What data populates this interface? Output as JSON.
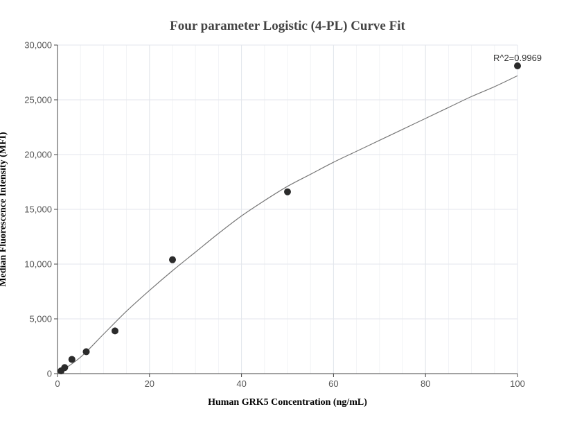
{
  "chart_data": {
    "type": "scatter",
    "title": "Four parameter Logistic (4-PL) Curve Fit",
    "xlabel": "Human GRK5 Concentration (ng/mL)",
    "ylabel": "Median Fluorescence Intensity (MFI)",
    "xlim": [
      0,
      100
    ],
    "ylim": [
      0,
      30000
    ],
    "x_ticks": [
      0,
      20,
      40,
      60,
      80,
      100
    ],
    "x_tick_labels": [
      "0",
      "20",
      "40",
      "60",
      "80",
      "100"
    ],
    "y_ticks": [
      0,
      5000,
      10000,
      15000,
      20000,
      25000,
      30000
    ],
    "y_tick_labels": [
      "0",
      "5,000",
      "10,000",
      "15,000",
      "20,000",
      "25,000",
      "30,000"
    ],
    "grid": true,
    "series": [
      {
        "kind": "points",
        "color": "#2b2b2b",
        "x": [
          0.78,
          1.56,
          3.13,
          6.25,
          12.5,
          25,
          50,
          100
        ],
        "y": [
          250,
          550,
          1300,
          2000,
          3900,
          10400,
          16600,
          28100
        ]
      },
      {
        "kind": "fit-curve",
        "color": "#777777",
        "x": [
          0,
          5,
          10,
          15,
          20,
          25,
          30,
          35,
          40,
          45,
          50,
          55,
          60,
          65,
          70,
          75,
          80,
          85,
          90,
          95,
          100
        ],
        "y": [
          0,
          1500,
          3600,
          5700,
          7600,
          9400,
          11100,
          12800,
          14400,
          15800,
          17100,
          18200,
          19300,
          20300,
          21300,
          22300,
          23300,
          24300,
          25300,
          26200,
          27200
        ]
      }
    ],
    "annotations": [
      {
        "text": "R^2=0.9969",
        "x": 100,
        "y": 28100
      }
    ]
  }
}
